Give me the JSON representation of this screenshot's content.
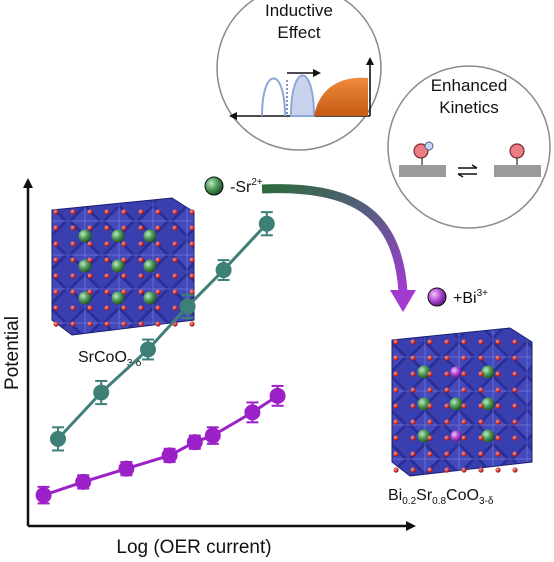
{
  "axes": {
    "xlabel": "Log (OER current)",
    "ylabel": "Potential"
  },
  "bubbles": {
    "inductive_title_line1": "Inductive",
    "inductive_title_line2": "Effect",
    "kinetics_title_line1": "Enhanced",
    "kinetics_title_line2": "Kinetics"
  },
  "annotations": {
    "remove_label": "-Sr",
    "remove_charge": "2+",
    "add_label": "+Bi",
    "add_charge": "3+"
  },
  "materials": {
    "parent_formula": "SrCoO3-δ",
    "parent_parts": [
      "SrCoO",
      "3-δ"
    ],
    "doped_formula": "Bi0.2Sr0.8CoO3-δ",
    "doped_parts": [
      "Bi",
      "0.2",
      "Sr",
      "0.8",
      "CoO",
      "3-δ"
    ]
  },
  "colors": {
    "teal_series": "#3e7f78",
    "purple_series": "#9b20c8",
    "arrow_start": "#2e6b3c",
    "arrow_end": "#a23ad0",
    "octahedra": "#2b2f9c",
    "oxygen": "#d92020",
    "sr_ion": "#4c9a56",
    "bi_ion": "#b24fd6"
  },
  "chart_data": {
    "type": "line",
    "x_units": "relative",
    "xlim": [
      0,
      10
    ],
    "ylim": [
      0,
      10
    ],
    "series": [
      {
        "name": "SrCoO3-δ",
        "color": "#3e7f78",
        "points": [
          [
            1.0,
            2.3
          ],
          [
            2.2,
            3.7
          ],
          [
            3.5,
            5.0
          ],
          [
            4.6,
            6.3
          ],
          [
            5.6,
            7.4
          ],
          [
            6.8,
            8.8
          ]
        ],
        "err": [
          0.35,
          0.35,
          0.3,
          0.35,
          0.3,
          0.35
        ]
      },
      {
        "name": "Bi0.2Sr0.8CoO3-δ",
        "color": "#9b20c8",
        "points": [
          [
            0.6,
            0.6
          ],
          [
            1.7,
            1.0
          ],
          [
            2.9,
            1.4
          ],
          [
            4.1,
            1.8
          ],
          [
            4.8,
            2.2
          ],
          [
            5.3,
            2.4
          ],
          [
            6.4,
            3.1
          ],
          [
            7.1,
            3.6
          ]
        ],
        "err": [
          0.25,
          0.2,
          0.2,
          0.2,
          0.2,
          0.25,
          0.3,
          0.3
        ]
      }
    ]
  }
}
